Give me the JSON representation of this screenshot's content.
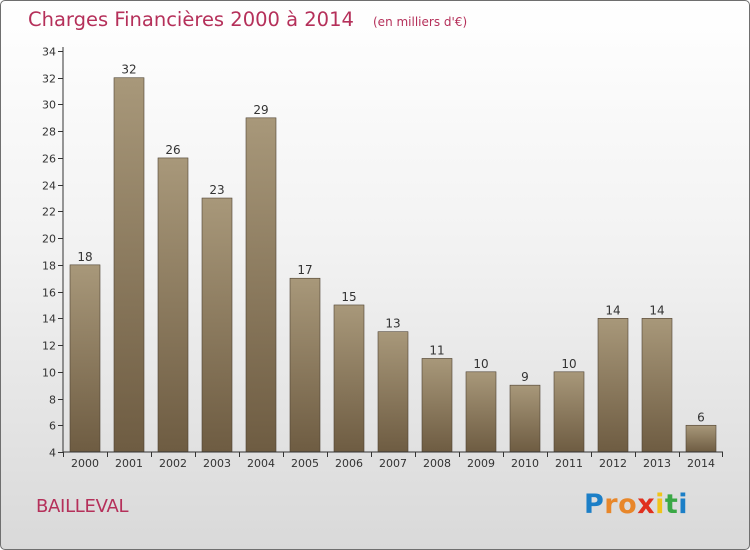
{
  "header": {
    "title": "Charges Financières 2000 à 2014",
    "subtitle": "(en milliers d'€)"
  },
  "footer": {
    "commune": "BAILLEVAL",
    "logo_letters": [
      "P",
      "r",
      "o",
      "x",
      "i",
      "t",
      "i"
    ],
    "logo_colors": [
      "#1c7fc7",
      "#e8872a",
      "#e8872a",
      "#e0301e",
      "#f0c419",
      "#3aa845",
      "#1c7fc7"
    ]
  },
  "colors": {
    "title": "#b5305a",
    "bar_top": "#a8987a",
    "bar_bottom": "#6e5c42",
    "axis": "#333333"
  },
  "chart_data": {
    "type": "bar",
    "title": "Charges Financières 2000 à 2014",
    "subtitle": "(en milliers d'€)",
    "xlabel": "",
    "ylabel": "",
    "categories": [
      "2000",
      "2001",
      "2002",
      "2003",
      "2004",
      "2005",
      "2006",
      "2007",
      "2008",
      "2009",
      "2010",
      "2011",
      "2012",
      "2013",
      "2014"
    ],
    "values": [
      18,
      32,
      26,
      23,
      29,
      17,
      15,
      13,
      11,
      10,
      9,
      10,
      14,
      14,
      6
    ],
    "ylim": [
      4,
      34
    ],
    "yticks": [
      4,
      6,
      8,
      10,
      12,
      14,
      16,
      18,
      20,
      22,
      24,
      26,
      28,
      30,
      32,
      34
    ],
    "grid": false,
    "data_labels": true
  }
}
